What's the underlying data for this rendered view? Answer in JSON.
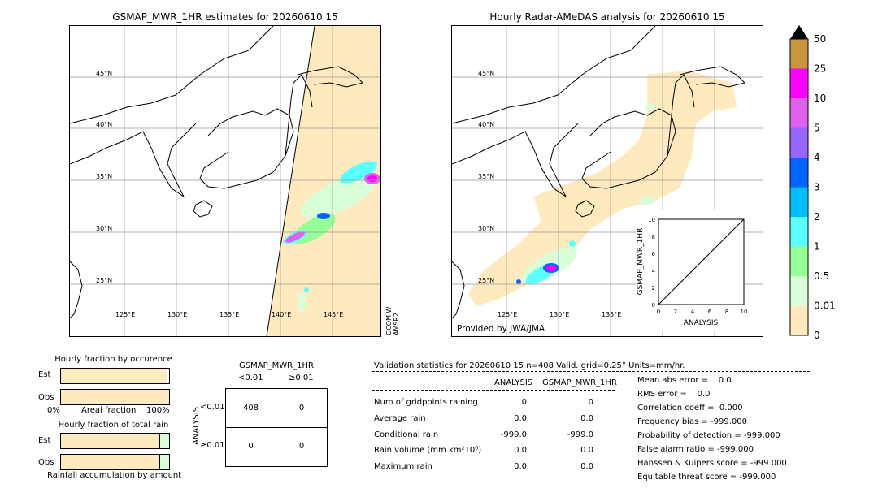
{
  "left_map": {
    "title": "GSMAP_MWR_1HR estimates for 20260610 15",
    "lat_labels": [
      "45°N",
      "40°N",
      "35°N",
      "30°N",
      "25°N"
    ],
    "lon_labels": [
      "125°E",
      "130°E",
      "135°E",
      "140°E",
      "145°E"
    ],
    "sensor_labels": [
      "GCOM-W",
      "AMSR2"
    ]
  },
  "right_map": {
    "title": "Hourly Radar-AMeDAS analysis for 20260610 15",
    "lat_labels": [
      "45°N",
      "40°N",
      "35°N",
      "30°N",
      "25°N"
    ],
    "lon_labels": [
      "125°E",
      "130°E",
      "135°E"
    ],
    "credit": "Provided by JWA/JMA"
  },
  "colorbar": {
    "labels": [
      "50",
      "25",
      "10",
      "5",
      "4",
      "3",
      "2",
      "1",
      "0.5",
      "0.01",
      "0"
    ],
    "colors": [
      "#c8963c",
      "#ff00ff",
      "#e060f0",
      "#9966ff",
      "#0066ff",
      "#00bfff",
      "#5cffff",
      "#96ff96",
      "#d9ffd9",
      "#ffe9bf"
    ]
  },
  "scatter_inset": {
    "xlabel": "ANALYSIS",
    "ylabel": "GSMAP_MWR_1HR",
    "ticks": [
      "0",
      "2",
      "4",
      "6",
      "8",
      "10"
    ]
  },
  "fractions": {
    "occurrence_title": "Hourly fraction by occurence",
    "total_title": "Hourly fraction of total rain",
    "est_label": "Est",
    "obs_label": "Obs",
    "axis_left": "0%",
    "axis_mid": "Areal fraction",
    "axis_right": "100%",
    "footer": "Rainfall accumulation by amount"
  },
  "contingency": {
    "title": "GSMAP_MWR_1HR",
    "col_labels": [
      "<0.01",
      "≥0.01"
    ],
    "row_axis": "ANALYSIS",
    "row_labels": [
      "<0.01",
      "≥0.01"
    ],
    "cells": [
      [
        "408",
        "0"
      ],
      [
        "0",
        "0"
      ]
    ]
  },
  "validation": {
    "header": "Validation statistics for 20260610 15  n=408 Valid. grid=0.25° Units=mm/hr.",
    "col_analysis": "ANALYSIS",
    "col_gsmap": "GSMAP_MWR_1HR",
    "rows": [
      {
        "label": "Num of gridpoints raining",
        "a": "0",
        "g": "0"
      },
      {
        "label": "Average rain",
        "a": "0.0",
        "g": "0.0"
      },
      {
        "label": "Conditional rain",
        "a": "-999.0",
        "g": "-999.0"
      },
      {
        "label": "Rain volume (mm km²10⁶)",
        "a": "0.0",
        "g": "0.0"
      },
      {
        "label": "Maximum rain",
        "a": "0.0",
        "g": "0.0"
      }
    ],
    "scores": [
      "Mean abs error =    0.0",
      "RMS error =    0.0",
      "Correlation coeff =  0.000",
      "Frequency bias = -999.000",
      "Probability of detection = -999.000",
      "False alarm ratio = -999.000",
      "Hanssen & Kuipers score = -999.000",
      "Equitable threat score = -999.000"
    ]
  }
}
